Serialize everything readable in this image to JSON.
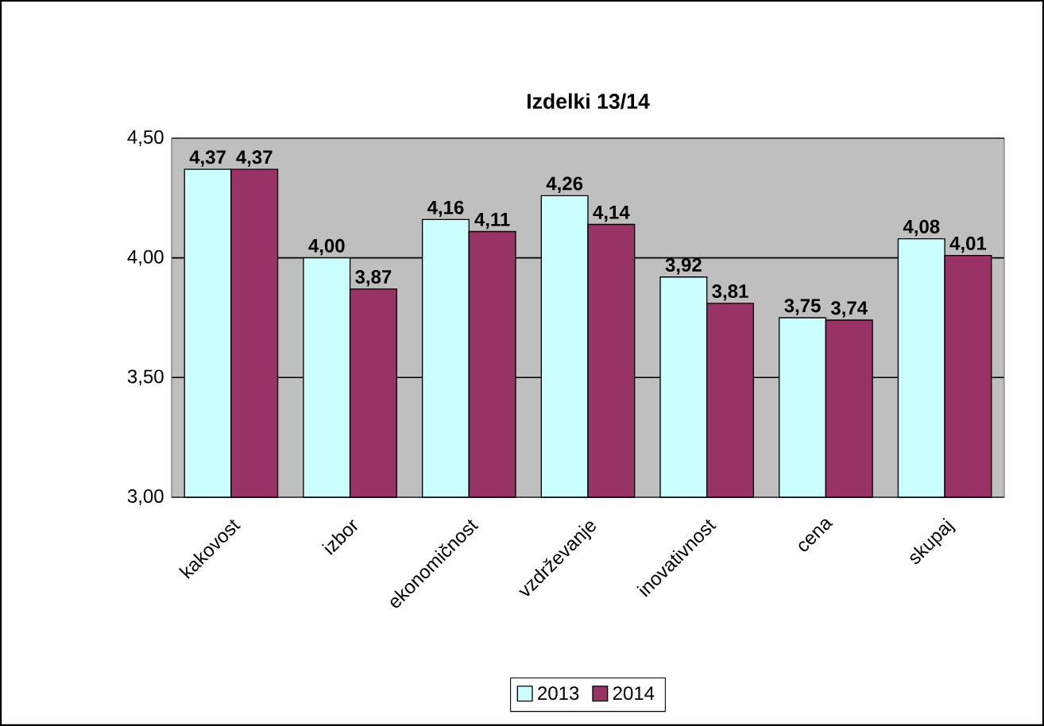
{
  "chart_data": {
    "type": "bar",
    "title": "Izdelki 13/14",
    "categories": [
      "kakovost",
      "izbor",
      "ekonomičnost",
      "vzdrževanje",
      "inovativnost",
      "cena",
      "skupaj"
    ],
    "series": [
      {
        "name": "2013",
        "color": "#ccffff",
        "values": [
          4.37,
          4.0,
          4.16,
          4.26,
          3.92,
          3.75,
          4.08
        ],
        "value_labels": [
          "4,37",
          "4,00",
          "4,16",
          "4,26",
          "3,92",
          "3,75",
          "4,08"
        ]
      },
      {
        "name": "2014",
        "color": "#993366",
        "values": [
          4.37,
          3.87,
          4.11,
          4.14,
          3.81,
          3.74,
          4.01
        ],
        "value_labels": [
          "4,37",
          "3,87",
          "4,11",
          "4,14",
          "3,81",
          "3,74",
          "4,01"
        ]
      }
    ],
    "ylim": [
      3,
      4.5
    ],
    "yticks": [
      {
        "value": 3,
        "label": "3,00"
      },
      {
        "value": 3.5,
        "label": "3,50"
      },
      {
        "value": 4,
        "label": "4,00"
      },
      {
        "value": 4.5,
        "label": "4,50"
      }
    ],
    "grid": "y",
    "legend": "bottom"
  }
}
